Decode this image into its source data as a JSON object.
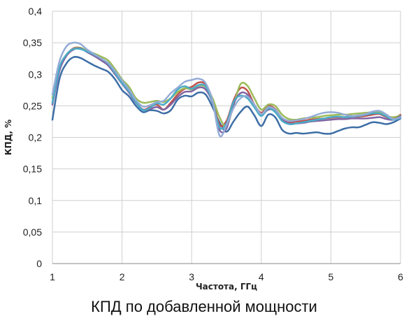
{
  "chart_data": {
    "type": "line",
    "title": "",
    "caption": "КПД по добавленной мощности",
    "xlabel": "Частота, ГГц",
    "ylabel": "КПД, %",
    "xlim": [
      1,
      6
    ],
    "ylim": [
      0,
      0.4
    ],
    "x_ticks": [
      1,
      2,
      3,
      4,
      5,
      6
    ],
    "x_tick_labels": [
      "1",
      "2",
      "3",
      "4",
      "5",
      "6"
    ],
    "y_ticks": [
      0,
      0.05,
      0.1,
      0.15,
      0.2,
      0.25,
      0.3,
      0.35,
      0.4
    ],
    "y_tick_labels": [
      "0",
      "0,05",
      "0,1",
      "0,15",
      "0,2",
      "0,25",
      "0,3",
      "0,35",
      "0,4"
    ],
    "grid": true,
    "legend": "none",
    "x": [
      1.0,
      1.1,
      1.2,
      1.3,
      1.4,
      1.5,
      1.6,
      1.7,
      1.8,
      1.9,
      2.0,
      2.1,
      2.2,
      2.3,
      2.4,
      2.5,
      2.6,
      2.7,
      2.8,
      2.9,
      3.0,
      3.1,
      3.2,
      3.3,
      3.4,
      3.5,
      3.6,
      3.7,
      3.8,
      3.9,
      4.0,
      4.1,
      4.2,
      4.3,
      4.4,
      4.5,
      4.6,
      4.7,
      4.8,
      4.9,
      5.0,
      5.1,
      5.2,
      5.3,
      5.4,
      5.5,
      5.6,
      5.7,
      5.8,
      5.9,
      6.0
    ],
    "series": [
      {
        "color": "#3d6ea6",
        "values": [
          0.228,
          0.292,
          0.317,
          0.327,
          0.326,
          0.32,
          0.314,
          0.309,
          0.304,
          0.292,
          0.275,
          0.265,
          0.25,
          0.24,
          0.243,
          0.242,
          0.238,
          0.243,
          0.26,
          0.266,
          0.265,
          0.271,
          0.268,
          0.248,
          0.224,
          0.209,
          0.225,
          0.24,
          0.249,
          0.235,
          0.218,
          0.236,
          0.232,
          0.212,
          0.206,
          0.207,
          0.206,
          0.207,
          0.208,
          0.206,
          0.206,
          0.21,
          0.214,
          0.216,
          0.216,
          0.22,
          0.224,
          0.223,
          0.221,
          0.224,
          0.23
        ]
      },
      {
        "color": "#c0504d",
        "values": [
          0.255,
          0.308,
          0.33,
          0.341,
          0.342,
          0.336,
          0.33,
          0.323,
          0.316,
          0.302,
          0.287,
          0.272,
          0.256,
          0.244,
          0.248,
          0.252,
          0.244,
          0.255,
          0.268,
          0.277,
          0.28,
          0.287,
          0.284,
          0.26,
          0.22,
          0.226,
          0.258,
          0.278,
          0.274,
          0.252,
          0.239,
          0.25,
          0.245,
          0.23,
          0.224,
          0.225,
          0.226,
          0.228,
          0.229,
          0.23,
          0.231,
          0.232,
          0.232,
          0.233,
          0.233,
          0.234,
          0.236,
          0.237,
          0.232,
          0.23,
          0.236
        ]
      },
      {
        "color": "#9bbb59",
        "values": [
          0.262,
          0.31,
          0.331,
          0.34,
          0.342,
          0.337,
          0.333,
          0.328,
          0.322,
          0.308,
          0.292,
          0.28,
          0.262,
          0.255,
          0.256,
          0.258,
          0.256,
          0.262,
          0.272,
          0.278,
          0.276,
          0.282,
          0.28,
          0.262,
          0.232,
          0.218,
          0.25,
          0.284,
          0.282,
          0.262,
          0.244,
          0.252,
          0.25,
          0.236,
          0.229,
          0.228,
          0.23,
          0.231,
          0.232,
          0.234,
          0.235,
          0.236,
          0.236,
          0.237,
          0.238,
          0.239,
          0.24,
          0.24,
          0.234,
          0.232,
          0.235
        ]
      },
      {
        "color": "#8064a2",
        "values": [
          0.252,
          0.305,
          0.329,
          0.339,
          0.341,
          0.335,
          0.329,
          0.322,
          0.314,
          0.3,
          0.285,
          0.271,
          0.255,
          0.244,
          0.245,
          0.248,
          0.244,
          0.252,
          0.264,
          0.272,
          0.273,
          0.279,
          0.276,
          0.255,
          0.212,
          0.214,
          0.252,
          0.27,
          0.268,
          0.251,
          0.236,
          0.244,
          0.242,
          0.228,
          0.222,
          0.222,
          0.223,
          0.225,
          0.226,
          0.227,
          0.228,
          0.229,
          0.229,
          0.23,
          0.23,
          0.23,
          0.231,
          0.232,
          0.229,
          0.228,
          0.234
        ]
      },
      {
        "color": "#4bacc6",
        "values": [
          0.255,
          0.31,
          0.331,
          0.34,
          0.34,
          0.336,
          0.331,
          0.325,
          0.317,
          0.302,
          0.286,
          0.273,
          0.256,
          0.243,
          0.247,
          0.254,
          0.252,
          0.262,
          0.276,
          0.281,
          0.277,
          0.283,
          0.281,
          0.256,
          0.216,
          0.222,
          0.256,
          0.266,
          0.262,
          0.248,
          0.234,
          0.246,
          0.24,
          0.226,
          0.221,
          0.222,
          0.224,
          0.226,
          0.228,
          0.23,
          0.232,
          0.233,
          0.232,
          0.233,
          0.234,
          0.236,
          0.238,
          0.238,
          0.233,
          0.228,
          0.231
        ]
      },
      {
        "color": "#94abd6",
        "values": [
          0.268,
          0.32,
          0.344,
          0.35,
          0.348,
          0.339,
          0.332,
          0.325,
          0.318,
          0.305,
          0.29,
          0.276,
          0.259,
          0.249,
          0.251,
          0.256,
          0.258,
          0.27,
          0.279,
          0.288,
          0.291,
          0.293,
          0.286,
          0.258,
          0.203,
          0.219,
          0.246,
          0.262,
          0.265,
          0.252,
          0.237,
          0.248,
          0.244,
          0.231,
          0.226,
          0.227,
          0.229,
          0.232,
          0.236,
          0.239,
          0.24,
          0.239,
          0.236,
          0.234,
          0.235,
          0.237,
          0.241,
          0.242,
          0.236,
          0.229,
          0.232
        ]
      }
    ]
  }
}
